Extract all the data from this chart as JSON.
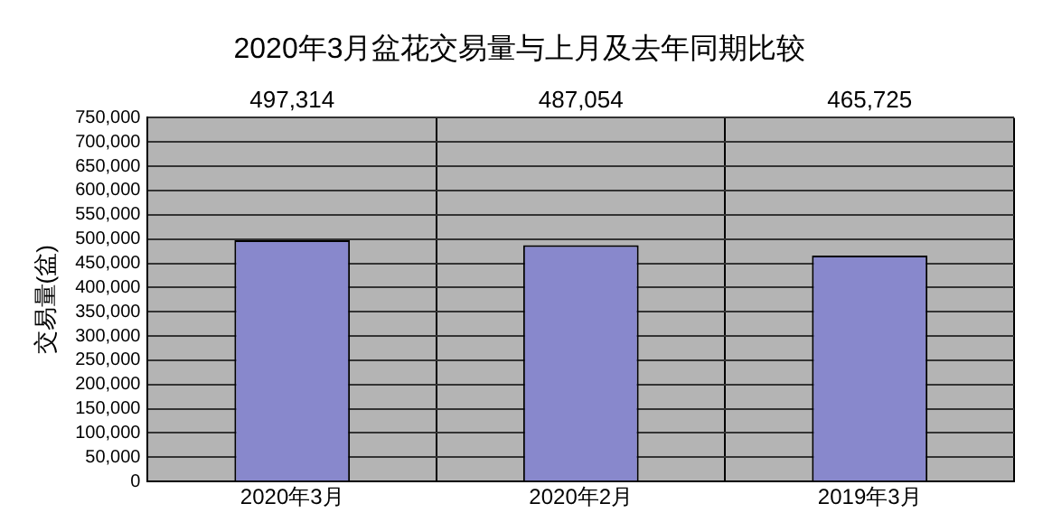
{
  "chart_data": {
    "type": "bar",
    "title": "2020年3月盆花交易量与上月及去年同期比较",
    "ylabel": "交易量(盆)",
    "categories": [
      "2020年3月",
      "2020年2月",
      "2019年3月"
    ],
    "values": [
      497314,
      487054,
      465725
    ],
    "color": "#8888cc",
    "annotations": [
      "497,314",
      "487,054",
      "465,725"
    ],
    "ylim": [
      0,
      750000
    ],
    "yticks": [
      0,
      {
        "value": 50000,
        "label": "50,000"
      },
      {
        "value": 100000,
        "label": "100,000"
      },
      {
        "value": 150000,
        "label": "150,000"
      },
      {
        "value": 200000,
        "label": "200,000"
      },
      {
        "value": 250000,
        "label": "250,000"
      },
      {
        "value": 300000,
        "label": "300,000"
      },
      {
        "value": 350000,
        "label": "350,000"
      },
      {
        "value": 400000,
        "label": "400,000"
      },
      {
        "value": 450000,
        "label": "450,000"
      },
      {
        "value": 500000,
        "label": "500,000"
      },
      {
        "value": 550000,
        "label": "550,000"
      },
      {
        "value": 600000,
        "label": "600,000"
      },
      {
        "value": 650000,
        "label": "650,000"
      },
      {
        "value": 700000,
        "label": "700,000"
      },
      {
        "value": 750000,
        "label": "750,000"
      }
    ],
    "grid": true
  }
}
